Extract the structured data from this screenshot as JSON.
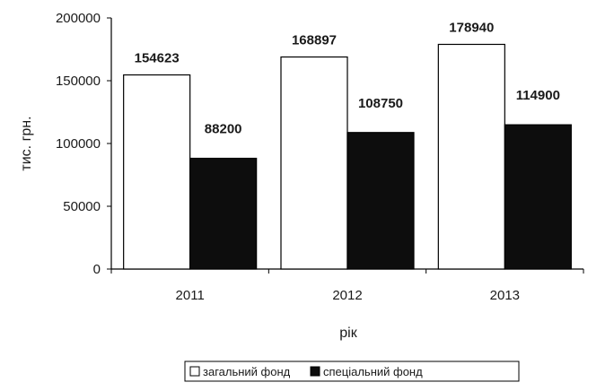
{
  "chart_data": {
    "type": "bar",
    "categories": [
      "2011",
      "2012",
      "2013"
    ],
    "series": [
      {
        "name": "загальний фонд",
        "values": [
          154623,
          168897,
          178940
        ],
        "labels": [
          "154623",
          "168897",
          "178940"
        ],
        "fill": "#ffffff",
        "stroke": "#000000"
      },
      {
        "name": "спеціальний фонд",
        "values": [
          88200,
          108750,
          114900
        ],
        "labels": [
          "88200",
          "108750",
          "114900"
        ],
        "fill": "#0d0d0d",
        "stroke": "#000000"
      }
    ],
    "xlabel": "рік",
    "ylabel": "тис. грн.",
    "ylim": [
      0,
      200000
    ],
    "yticks": [
      "0",
      "50000",
      "100000",
      "150000",
      "200000"
    ],
    "yticks_values": [
      0,
      50000,
      100000,
      150000,
      200000
    ],
    "grid": false,
    "legend_position": "bottom"
  }
}
